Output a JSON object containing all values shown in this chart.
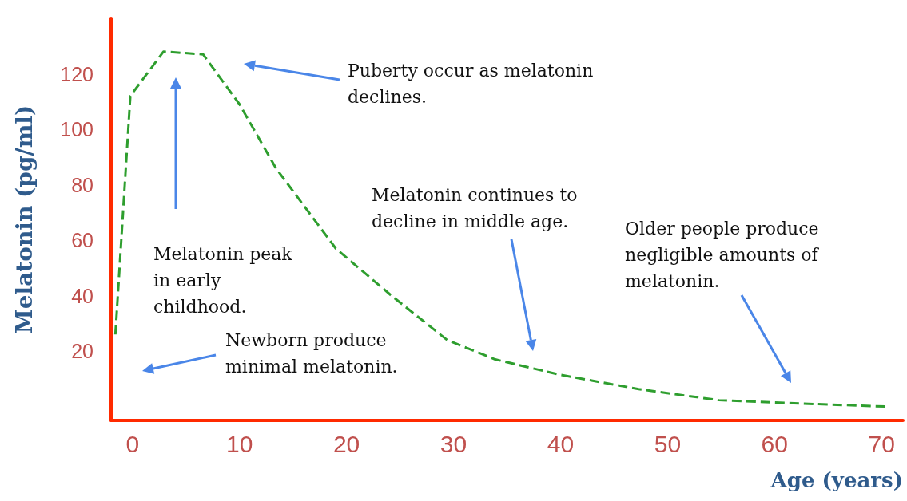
{
  "chart_data": {
    "type": "line",
    "xlabel": "Age (years)",
    "ylabel": "Melatonin (pg/ml)",
    "x": [
      -1.6,
      -0.2,
      2.9,
      6.6,
      10,
      13.4,
      19,
      24.2,
      29.4,
      33.9,
      39.9,
      47.3,
      54.8,
      62.3,
      70.5
    ],
    "series": [
      {
        "color": "#2e9e2e",
        "values": [
          26,
          112,
          128,
          127,
          109,
          86,
          57,
          40,
          24,
          17,
          11.5,
          6.3,
          2.3,
          1.1,
          0
        ]
      }
    ],
    "xlim": [
      -2,
      72
    ],
    "xticks": [
      0,
      10,
      20,
      30,
      40,
      50,
      60,
      70
    ],
    "ylim": [
      -5,
      140
    ],
    "yticks": [
      20,
      40,
      60,
      80,
      100,
      120
    ],
    "grid": false,
    "marker": "none",
    "line_style": "dashed",
    "annotations": [
      "Puberty occur as melatonin declines.",
      "Melatonin peak in early childhood.",
      "Melatonin continues to decline in middle age.",
      "Older people produce negligible amounts of melatonin.",
      "Newborn produce minimal melatonin."
    ]
  }
}
